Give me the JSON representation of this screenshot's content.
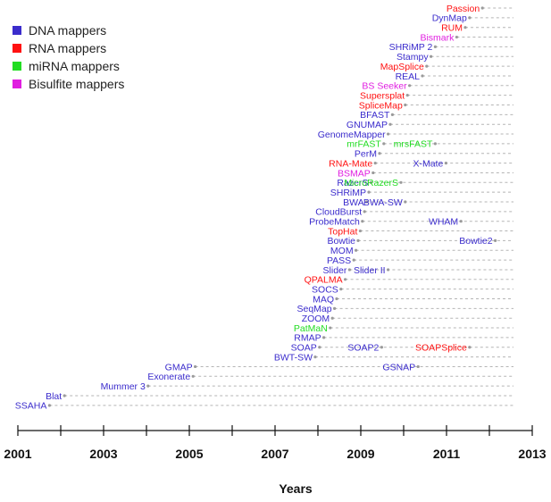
{
  "chart_data": {
    "type": "timeline",
    "xlabel": "Years",
    "xlim": [
      2001,
      2013
    ],
    "xticks": [
      "2001",
      "2003",
      "2005",
      "2007",
      "2009",
      "2011",
      "2013"
    ],
    "colors": {
      "dna": "#3b2ccc",
      "rna": "#ff1111",
      "mirna": "#22dd22",
      "bisulfite": "#e01ee0",
      "line": "#b5b5b5",
      "axis": "#111111"
    },
    "legend": [
      {
        "label": "DNA mappers",
        "cat": "dna"
      },
      {
        "label": "RNA mappers",
        "cat": "rna"
      },
      {
        "label": "miRNA mappers",
        "cat": "mirna"
      },
      {
        "label": "Bisulfite mappers",
        "cat": "bisulfite"
      }
    ],
    "rows": [
      {
        "start": 2011.9,
        "items": [
          {
            "name": "Passion",
            "cat": "rna",
            "x": 2011.9
          }
        ]
      },
      {
        "start": 2011.6,
        "items": [
          {
            "name": "DynMap",
            "cat": "dna",
            "x": 2011.6
          }
        ]
      },
      {
        "start": 2011.5,
        "items": [
          {
            "name": "RUM",
            "cat": "rna",
            "x": 2011.5
          }
        ]
      },
      {
        "start": 2011.3,
        "items": [
          {
            "name": "Bismark",
            "cat": "bisulfite",
            "x": 2011.3
          }
        ]
      },
      {
        "start": 2010.8,
        "items": [
          {
            "name": "SHRiMP 2",
            "cat": "dna",
            "x": 2010.8
          }
        ]
      },
      {
        "start": 2010.7,
        "items": [
          {
            "name": "Stampy",
            "cat": "dna",
            "x": 2010.7
          }
        ]
      },
      {
        "start": 2010.6,
        "items": [
          {
            "name": "MapSplice",
            "cat": "rna",
            "x": 2010.6
          }
        ]
      },
      {
        "start": 2010.5,
        "items": [
          {
            "name": "REAL",
            "cat": "dna",
            "x": 2010.5
          }
        ]
      },
      {
        "start": 2010.2,
        "items": [
          {
            "name": "BS Seeker",
            "cat": "bisulfite",
            "x": 2010.2
          }
        ]
      },
      {
        "start": 2010.15,
        "items": [
          {
            "name": "Supersplat",
            "cat": "rna",
            "x": 2010.15
          }
        ]
      },
      {
        "start": 2010.1,
        "items": [
          {
            "name": "SpliceMap",
            "cat": "rna",
            "x": 2010.1
          }
        ]
      },
      {
        "start": 2009.8,
        "items": [
          {
            "name": "BFAST",
            "cat": "dna",
            "x": 2009.8
          }
        ]
      },
      {
        "start": 2009.75,
        "items": [
          {
            "name": "GNUMAP",
            "cat": "dna",
            "x": 2009.75
          }
        ]
      },
      {
        "start": 2009.7,
        "items": [
          {
            "name": "GenomeMapper",
            "cat": "dna",
            "x": 2009.7
          }
        ]
      },
      {
        "start": 2009.6,
        "items": [
          {
            "name": "mrFAST",
            "cat": "mirna",
            "x": 2009.6
          },
          {
            "name": "mrsFAST",
            "cat": "mirna",
            "x": 2010.8
          }
        ]
      },
      {
        "start": 2009.5,
        "items": [
          {
            "name": "PerM",
            "cat": "dna",
            "x": 2009.5
          }
        ]
      },
      {
        "start": 2009.4,
        "items": [
          {
            "name": "RNA-Mate",
            "cat": "rna",
            "x": 2009.4
          },
          {
            "name": "X-Mate",
            "cat": "dna",
            "x": 2011.05
          }
        ]
      },
      {
        "start": 2009.35,
        "items": [
          {
            "name": "BSMAP",
            "cat": "bisulfite",
            "x": 2009.35
          }
        ]
      },
      {
        "start": 2009.3,
        "items": [
          {
            "name": "RazerS",
            "cat": "dna",
            "x": 2009.3
          },
          {
            "name": "MicroRazerS",
            "cat": "mirna",
            "x": 2010.0
          }
        ]
      },
      {
        "start": 2009.25,
        "items": [
          {
            "name": "SHRiMP",
            "cat": "dna",
            "x": 2009.25
          }
        ]
      },
      {
        "start": 2009.2,
        "items": [
          {
            "name": "BWA",
            "cat": "dna",
            "x": 2009.2
          },
          {
            "name": "BWA-SW",
            "cat": "dna",
            "x": 2010.1
          }
        ]
      },
      {
        "start": 2009.15,
        "items": [
          {
            "name": "CloudBurst",
            "cat": "dna",
            "x": 2009.15
          }
        ]
      },
      {
        "start": 2009.1,
        "items": [
          {
            "name": "ProbeMatch",
            "cat": "dna",
            "x": 2009.1
          },
          {
            "name": "WHAM",
            "cat": "dna",
            "x": 2011.4
          }
        ]
      },
      {
        "start": 2009.05,
        "items": [
          {
            "name": "TopHat",
            "cat": "rna",
            "x": 2009.05
          }
        ]
      },
      {
        "start": 2009.0,
        "items": [
          {
            "name": "Bowtie",
            "cat": "dna",
            "x": 2009.0
          },
          {
            "name": "Bowtie2",
            "cat": "dna",
            "x": 2012.2
          }
        ]
      },
      {
        "start": 2008.95,
        "items": [
          {
            "name": "MOM",
            "cat": "dna",
            "x": 2008.95
          }
        ]
      },
      {
        "start": 2008.9,
        "items": [
          {
            "name": "PASS",
            "cat": "dna",
            "x": 2008.9
          }
        ]
      },
      {
        "start": 2008.8,
        "items": [
          {
            "name": "Slider",
            "cat": "dna",
            "x": 2008.8
          },
          {
            "name": "Slider II",
            "cat": "dna",
            "x": 2009.7
          }
        ]
      },
      {
        "start": 2008.7,
        "items": [
          {
            "name": "QPALMA",
            "cat": "rna",
            "x": 2008.7
          }
        ]
      },
      {
        "start": 2008.6,
        "items": [
          {
            "name": "SOCS",
            "cat": "dna",
            "x": 2008.6
          }
        ]
      },
      {
        "start": 2008.5,
        "items": [
          {
            "name": "MAQ",
            "cat": "dna",
            "x": 2008.5
          }
        ]
      },
      {
        "start": 2008.45,
        "items": [
          {
            "name": "SeqMap",
            "cat": "dna",
            "x": 2008.45
          }
        ]
      },
      {
        "start": 2008.4,
        "items": [
          {
            "name": "ZOOM",
            "cat": "dna",
            "x": 2008.4
          }
        ]
      },
      {
        "start": 2008.35,
        "items": [
          {
            "name": "PatMaN",
            "cat": "mirna",
            "x": 2008.35
          }
        ]
      },
      {
        "start": 2008.2,
        "items": [
          {
            "name": "RMAP",
            "cat": "dna",
            "x": 2008.2
          }
        ]
      },
      {
        "start": 2008.1,
        "items": [
          {
            "name": "SOAP",
            "cat": "dna",
            "x": 2008.1
          },
          {
            "name": "SOAP2",
            "cat": "dna",
            "x": 2009.55
          },
          {
            "name": "SOAPSplice",
            "cat": "rna",
            "x": 2011.6
          }
        ]
      },
      {
        "start": 2008.0,
        "items": [
          {
            "name": "BWT-SW",
            "cat": "dna",
            "x": 2008.0
          }
        ]
      },
      {
        "start": 2005.2,
        "items": [
          {
            "name": "GMAP",
            "cat": "dna",
            "x": 2005.2
          },
          {
            "name": "GSNAP",
            "cat": "dna",
            "x": 2010.4
          }
        ]
      },
      {
        "start": 2005.15,
        "items": [
          {
            "name": "Exonerate",
            "cat": "dna",
            "x": 2005.15
          }
        ]
      },
      {
        "start": 2004.1,
        "items": [
          {
            "name": "Mummer 3",
            "cat": "dna",
            "x": 2004.1
          }
        ]
      },
      {
        "start": 2002.15,
        "items": [
          {
            "name": "Blat",
            "cat": "dna",
            "x": 2002.15
          }
        ]
      },
      {
        "start": 2001.8,
        "items": [
          {
            "name": "SSAHA",
            "cat": "dna",
            "x": 2001.8
          }
        ]
      }
    ]
  }
}
